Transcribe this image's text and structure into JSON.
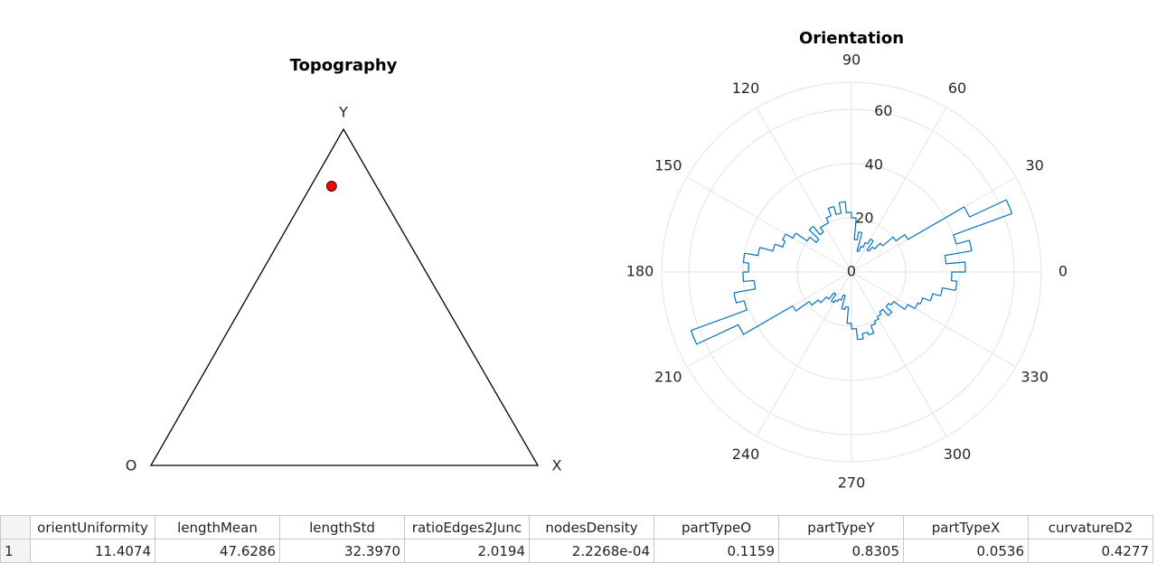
{
  "chart_data": [
    {
      "type": "ternary",
      "title": "Topography",
      "vertices": [
        "O",
        "X",
        "Y"
      ],
      "values": [
        0.1159,
        0.0536,
        0.8305
      ],
      "color": "#ff0000"
    },
    {
      "type": "polar_histogram",
      "title": "Orientation",
      "bins": [
        0,
        5,
        10,
        15,
        20,
        25,
        30,
        35,
        40,
        45,
        50,
        55,
        60,
        65,
        70,
        75,
        80,
        85,
        90,
        95,
        100,
        105,
        110,
        115,
        120,
        125,
        130,
        135,
        140,
        145,
        150,
        155,
        160,
        165,
        170,
        175,
        180,
        185,
        190,
        195,
        200,
        205,
        210,
        215,
        220,
        225,
        230,
        235,
        240,
        245,
        250,
        255,
        260,
        265,
        270,
        275,
        280,
        285,
        290,
        295,
        300,
        305,
        310,
        315,
        320,
        325,
        330,
        335,
        340,
        345,
        350,
        355,
        360
      ],
      "values": [
        42,
        35,
        45,
        40,
        63,
        48,
        24,
        20,
        15,
        12,
        10,
        14,
        12,
        10,
        8,
        15,
        12,
        20,
        22,
        26,
        22,
        25,
        22,
        20,
        20,
        18,
        22,
        17,
        20,
        25,
        28,
        27,
        30,
        35,
        40,
        38,
        40,
        36,
        44,
        41,
        63,
        46,
        25,
        19,
        16,
        13,
        10,
        13,
        12,
        11,
        9,
        14,
        13,
        19,
        21,
        25,
        23,
        24,
        21,
        20,
        19,
        18,
        21,
        18,
        19,
        24,
        27,
        28,
        31,
        34,
        39,
        37
      ],
      "color": "#0072bd",
      "rlim": [
        0,
        70
      ],
      "rticks": [
        0,
        20,
        40,
        60
      ],
      "thetaticks": [
        0,
        30,
        60,
        90,
        120,
        150,
        180,
        210,
        240,
        270,
        300,
        330
      ],
      "grid": true
    }
  ],
  "table": {
    "columns": [
      "orientUniformity",
      "lengthMean",
      "lengthStd",
      "ratioEdges2Junc",
      "nodesDensity",
      "partTypeO",
      "partTypeY",
      "partTypeX",
      "curvatureD2"
    ],
    "rows": [
      {
        "label": "1",
        "cells": [
          "11.4074",
          "47.6286",
          "32.3970",
          "2.0194",
          "2.2268e-04",
          "0.1159",
          "0.8305",
          "0.0536",
          "0.4277"
        ]
      }
    ]
  }
}
